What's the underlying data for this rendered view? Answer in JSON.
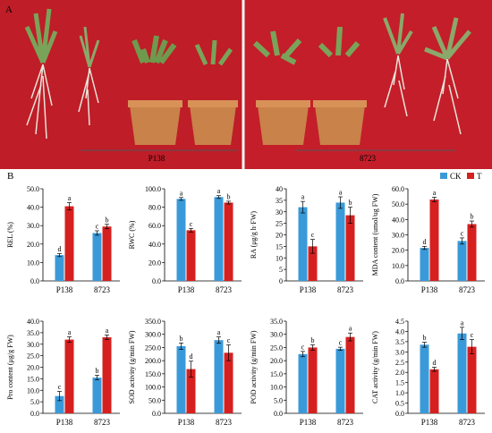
{
  "figure": {
    "panel_a_label": "A",
    "panel_b_label": "B",
    "photo_labels": [
      "P138",
      "8723"
    ],
    "legend": [
      {
        "label": "CK",
        "color": "#3a9ad9"
      },
      {
        "label": "T",
        "color": "#d62020"
      }
    ],
    "colors": {
      "photo_background": "#c41e2a",
      "pot": "#c9824a",
      "leaf": "#7aa35a",
      "root": "#e8e4d8"
    }
  },
  "chart_data": [
    {
      "type": "bar",
      "ylabel": "REL (%)",
      "categories": [
        "P138",
        "8723"
      ],
      "ylim": [
        0,
        50
      ],
      "ticks": [
        "0.0",
        "10.0",
        "20.0",
        "30.0",
        "40.0",
        "50.0"
      ],
      "series": [
        {
          "name": "CK",
          "values": [
            14,
            26
          ],
          "err": [
            0.8,
            1.2
          ]
        },
        {
          "name": "T",
          "values": [
            40.5,
            29.5
          ],
          "err": [
            2,
            1.2
          ]
        }
      ],
      "letters": [
        [
          "d",
          "a"
        ],
        [
          "c",
          "b"
        ]
      ]
    },
    {
      "type": "bar",
      "ylabel": "RWC (%)",
      "categories": [
        "P138",
        "8723"
      ],
      "ylim": [
        0,
        100
      ],
      "ticks": [
        "0.0",
        "20.0",
        "40.0",
        "60.0",
        "80.0",
        "100.0"
      ],
      "series": [
        {
          "name": "CK",
          "values": [
            89,
            91
          ],
          "err": [
            1.5,
            1.5
          ]
        },
        {
          "name": "T",
          "values": [
            55,
            85
          ],
          "err": [
            2,
            1.5
          ]
        }
      ],
      "letters": [
        [
          "a",
          "c"
        ],
        [
          "a",
          "b"
        ]
      ]
    },
    {
      "type": "bar",
      "ylabel": "RA (μg/g h·FW)",
      "categories": [
        "P138",
        "8723"
      ],
      "ylim": [
        0,
        40
      ],
      "ticks": [
        "0",
        "5",
        "10",
        "15",
        "20",
        "25",
        "30",
        "35",
        "40"
      ],
      "series": [
        {
          "name": "CK",
          "values": [
            32,
            34
          ],
          "err": [
            2.5,
            2.5
          ]
        },
        {
          "name": "T",
          "values": [
            15,
            28.5
          ],
          "err": [
            3,
            3.5
          ]
        }
      ],
      "letters": [
        [
          "a",
          "c"
        ],
        [
          "a",
          "b"
        ]
      ]
    },
    {
      "type": "bar",
      "ylabel": "MDA content (umol/ug FW)",
      "categories": [
        "P138",
        "8723"
      ],
      "ylim": [
        0,
        60
      ],
      "ticks": [
        "0.0",
        "10.0",
        "20.0",
        "30.0",
        "40.0",
        "50.0",
        "60.0"
      ],
      "series": [
        {
          "name": "CK",
          "values": [
            21.5,
            26
          ],
          "err": [
            1,
            2
          ]
        },
        {
          "name": "T",
          "values": [
            53,
            37
          ],
          "err": [
            1.5,
            2
          ]
        }
      ],
      "letters": [
        [
          "d",
          "a"
        ],
        [
          "c",
          "b"
        ]
      ]
    },
    {
      "type": "bar",
      "ylabel": "Pro content (μg/g FW)",
      "categories": [
        "P138",
        "8723"
      ],
      "ylim": [
        0,
        40
      ],
      "ticks": [
        "0.0",
        "5.0",
        "10.0",
        "15.0",
        "20.0",
        "25.0",
        "30.0",
        "35.0",
        "40.0"
      ],
      "series": [
        {
          "name": "CK",
          "values": [
            7.5,
            15.5
          ],
          "err": [
            2,
            1
          ]
        },
        {
          "name": "T",
          "values": [
            32,
            33
          ],
          "err": [
            1.2,
            1
          ]
        }
      ],
      "letters": [
        [
          "c",
          "a"
        ],
        [
          "b",
          "a"
        ]
      ]
    },
    {
      "type": "bar",
      "ylabel": "SOD activity (g/min FW)",
      "categories": [
        "P138",
        "8723"
      ],
      "ylim": [
        0,
        350
      ],
      "ticks": [
        "0.0",
        "50.0",
        "100.0",
        "150.0",
        "200.0",
        "250.0",
        "300.0",
        "350.0"
      ],
      "series": [
        {
          "name": "CK",
          "values": [
            255,
            278
          ],
          "err": [
            12,
            12
          ]
        },
        {
          "name": "T",
          "values": [
            168,
            230
          ],
          "err": [
            30,
            30
          ]
        }
      ],
      "letters": [
        [
          "b",
          "d"
        ],
        [
          "a",
          "c"
        ]
      ]
    },
    {
      "type": "bar",
      "ylabel": "POD activity (g/min FW)",
      "categories": [
        "P138",
        "8723"
      ],
      "ylim": [
        0,
        35
      ],
      "ticks": [
        "0.0",
        "5.0",
        "10.0",
        "15.0",
        "20.0",
        "25.0",
        "30.0",
        "35.0"
      ],
      "series": [
        {
          "name": "CK",
          "values": [
            22.5,
            24.5
          ],
          "err": [
            1,
            0.6
          ]
        },
        {
          "name": "T",
          "values": [
            25,
            29
          ],
          "err": [
            1,
            1.5
          ]
        }
      ],
      "letters": [
        [
          "c",
          "b"
        ],
        [
          "c",
          "a"
        ]
      ]
    },
    {
      "type": "bar",
      "ylabel": "CAT activity (g/min FW)",
      "categories": [
        "P138",
        "8723"
      ],
      "ylim": [
        0,
        4.5
      ],
      "ticks": [
        "0.0",
        "0.5",
        "1.0",
        "1.5",
        "2.0",
        "2.5",
        "3.0",
        "3.5",
        "4.0",
        "4.5"
      ],
      "series": [
        {
          "name": "CK",
          "values": [
            3.35,
            3.9
          ],
          "err": [
            0.12,
            0.3
          ]
        },
        {
          "name": "T",
          "values": [
            2.15,
            3.25
          ],
          "err": [
            0.1,
            0.35
          ]
        }
      ],
      "letters": [
        [
          "b",
          "d"
        ],
        [
          "a",
          "c"
        ]
      ]
    }
  ]
}
